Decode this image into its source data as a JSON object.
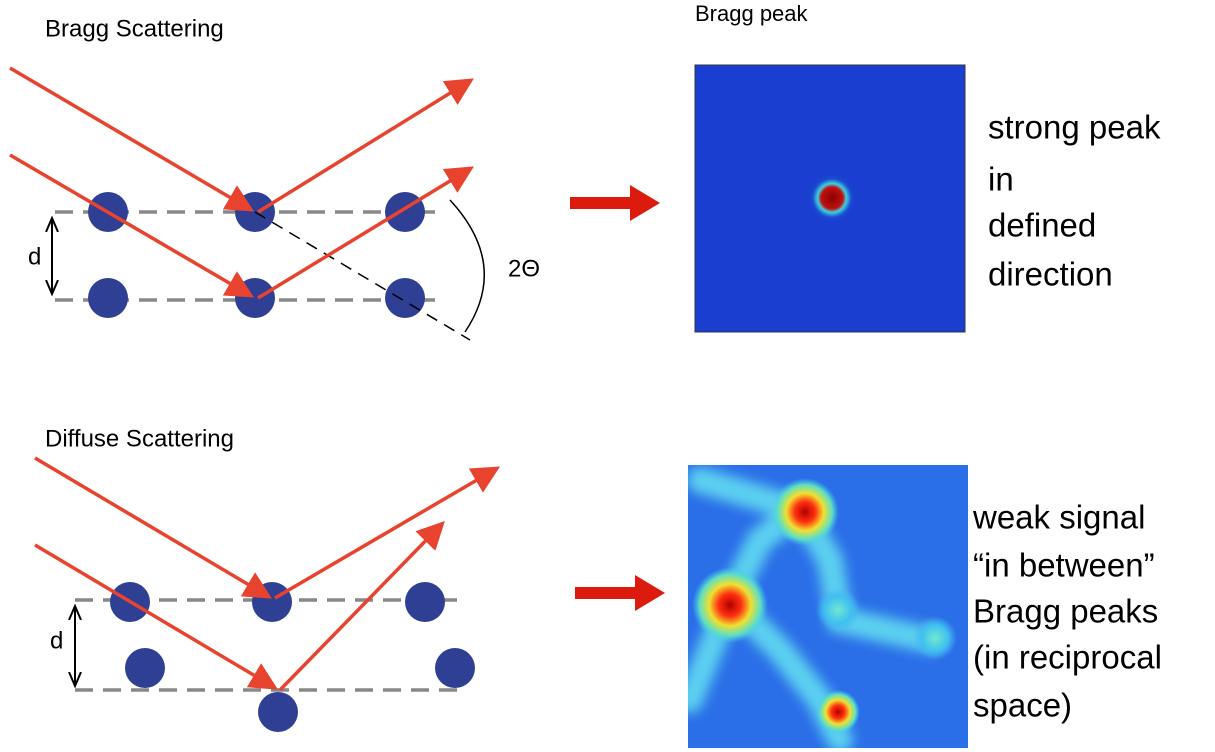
{
  "panels": [
    {
      "title": "Bragg Scattering",
      "image_label": "Bragg peak",
      "d_label": "d",
      "angle_label": "2Θ",
      "description": [
        "strong peak",
        "in",
        "defined",
        "direction"
      ]
    },
    {
      "title": "Diffuse Scattering",
      "d_label": "d",
      "description": [
        "weak signal",
        "“in between”",
        "Bragg peaks",
        "(in reciprocal",
        "space)"
      ]
    }
  ]
}
